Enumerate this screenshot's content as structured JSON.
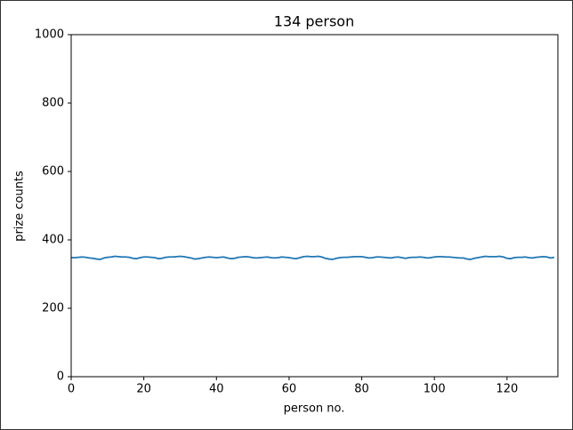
{
  "chart_data": {
    "type": "line",
    "title": "134 person",
    "x_label": "person no.",
    "y_label": "prize counts",
    "x": [
      0,
      1,
      2,
      3,
      4,
      5,
      6,
      7,
      8,
      9,
      10,
      11,
      12,
      13,
      14,
      15,
      16,
      17,
      18,
      19,
      20,
      21,
      22,
      23,
      24,
      25,
      26,
      27,
      28,
      29,
      30,
      31,
      32,
      33,
      34,
      35,
      36,
      37,
      38,
      39,
      40,
      41,
      42,
      43,
      44,
      45,
      46,
      47,
      48,
      49,
      50,
      51,
      52,
      53,
      54,
      55,
      56,
      57,
      58,
      59,
      60,
      61,
      62,
      63,
      64,
      65,
      66,
      67,
      68,
      69,
      70,
      71,
      72,
      73,
      74,
      75,
      76,
      77,
      78,
      79,
      80,
      81,
      82,
      83,
      84,
      85,
      86,
      87,
      88,
      89,
      90,
      91,
      92,
      93,
      94,
      95,
      96,
      97,
      98,
      99,
      100,
      101,
      102,
      103,
      104,
      105,
      106,
      107,
      108,
      109,
      110,
      111,
      112,
      113,
      114,
      115,
      116,
      117,
      118,
      119,
      120,
      121,
      122,
      123,
      124,
      125,
      126,
      127,
      128,
      129,
      130,
      131,
      132,
      133
    ],
    "series": [
      {
        "color": "#1f77b4",
        "values": [
          348,
          348,
          349,
          350,
          349,
          347,
          346,
          344,
          343,
          347,
          349,
          350,
          352,
          351,
          350,
          350,
          349,
          346,
          345,
          348,
          350,
          350,
          349,
          348,
          345,
          346,
          349,
          350,
          350,
          351,
          352,
          351,
          349,
          347,
          344,
          345,
          347,
          349,
          350,
          349,
          348,
          349,
          350,
          347,
          345,
          346,
          349,
          350,
          351,
          350,
          348,
          347,
          348,
          349,
          350,
          348,
          347,
          348,
          350,
          349,
          348,
          346,
          345,
          348,
          351,
          352,
          351,
          351,
          352,
          350,
          346,
          344,
          343,
          346,
          348,
          349,
          349,
          350,
          351,
          351,
          351,
          349,
          347,
          348,
          350,
          350,
          349,
          348,
          347,
          349,
          350,
          348,
          346,
          348,
          349,
          349,
          350,
          349,
          347,
          348,
          350,
          351,
          351,
          350,
          350,
          349,
          348,
          347,
          347,
          344,
          343,
          346,
          348,
          350,
          352,
          351,
          351,
          351,
          352,
          350,
          346,
          345,
          348,
          349,
          349,
          350,
          348,
          347,
          349,
          350,
          351,
          350,
          347,
          349
        ]
      }
    ],
    "xlim": [
      0,
      134
    ],
    "ylim": [
      0,
      1000
    ],
    "xticks": [
      0,
      20,
      40,
      60,
      80,
      100,
      120
    ],
    "yticks": [
      0,
      200,
      400,
      600,
      800,
      1000
    ]
  }
}
